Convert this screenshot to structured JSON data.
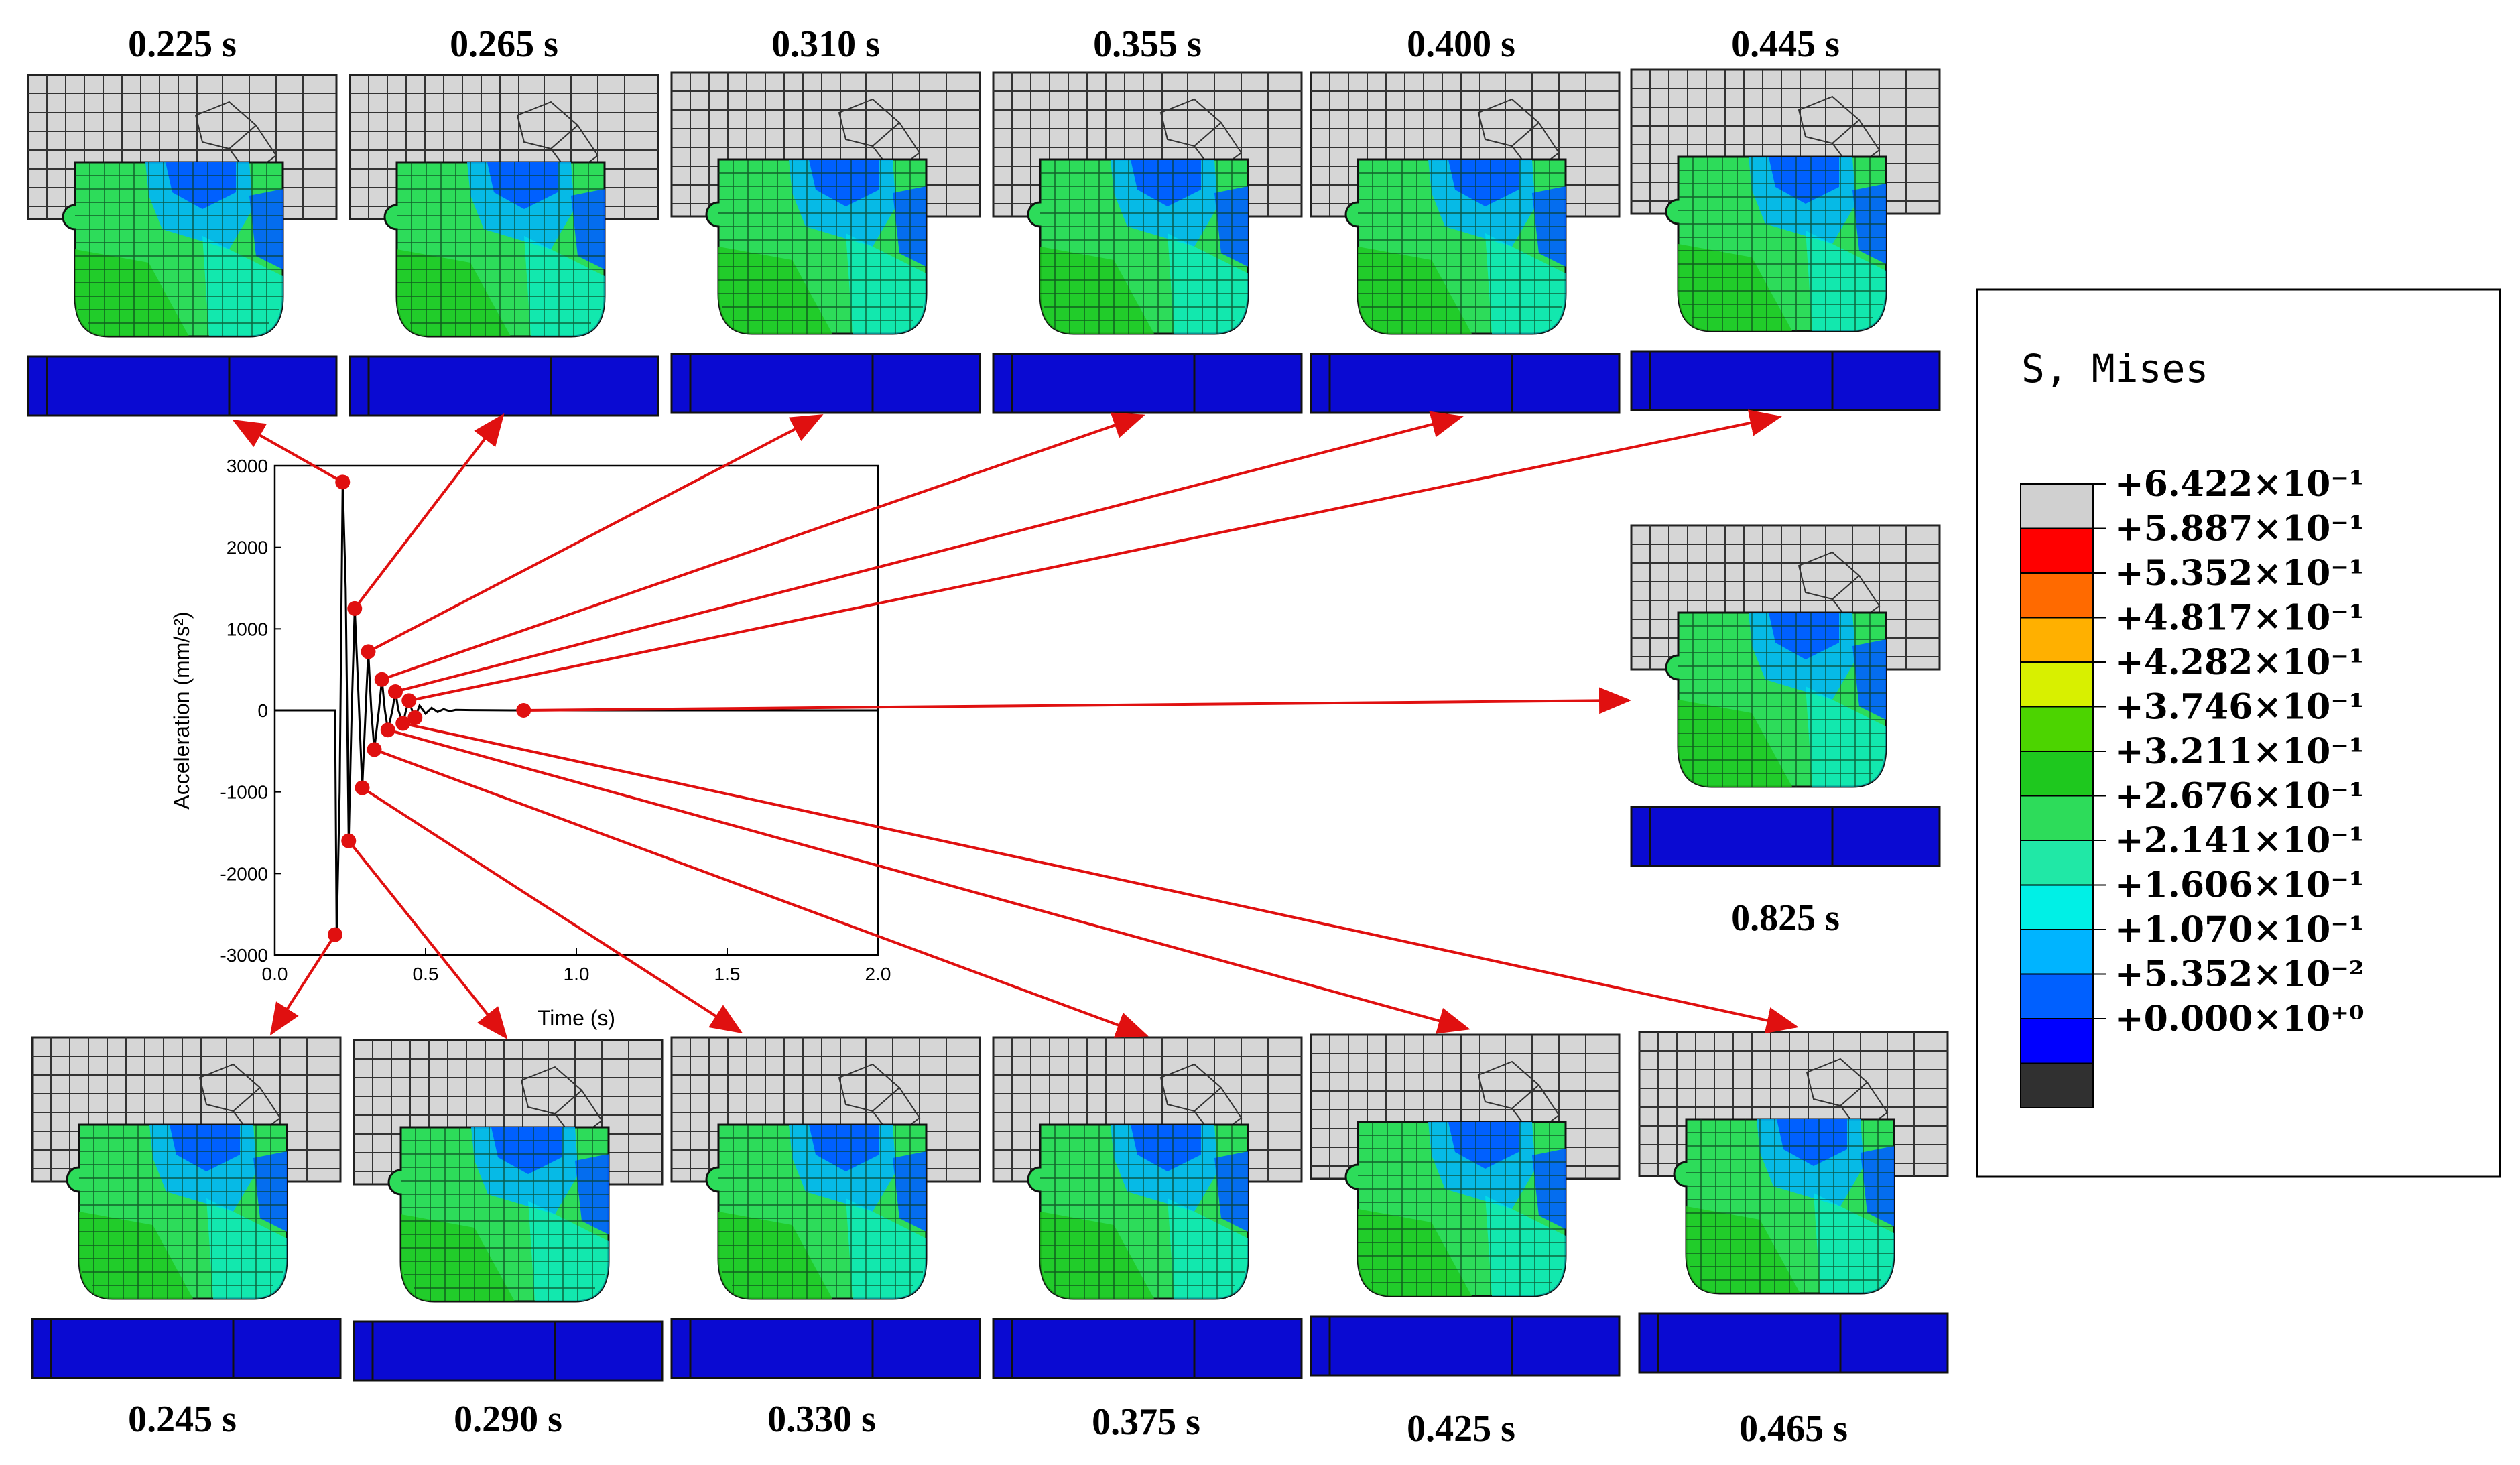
{
  "snapshots": {
    "top": [
      "0.225 s",
      "0.265 s",
      "0.310 s",
      "0.355 s",
      "0.400 s",
      "0.445 s"
    ],
    "bottom": [
      "0.245 s",
      "0.290 s",
      "0.330 s",
      "0.375 s",
      "0.425 s",
      "0.465 s"
    ],
    "side": "0.825 s"
  },
  "legend": {
    "title": "S, Mises",
    "entries": [
      {
        "label": "+6.422×10⁻¹",
        "color": "#d0d0d0"
      },
      {
        "label": "+5.887×10⁻¹",
        "color": "#ff0000"
      },
      {
        "label": "+5.352×10⁻¹",
        "color": "#ff6a00"
      },
      {
        "label": "+4.817×10⁻¹",
        "color": "#ffb000"
      },
      {
        "label": "+4.282×10⁻¹",
        "color": "#d8f000"
      },
      {
        "label": "+3.746×10⁻¹",
        "color": "#4cd400"
      },
      {
        "label": "+3.211×10⁻¹",
        "color": "#1ec81e"
      },
      {
        "label": "+2.676×10⁻¹",
        "color": "#2ddc5a"
      },
      {
        "label": "+2.141×10⁻¹",
        "color": "#20e8a6"
      },
      {
        "label": "+1.606×10⁻¹",
        "color": "#00f0e6"
      },
      {
        "label": "+1.070×10⁻¹",
        "color": "#00b4ff"
      },
      {
        "label": "+5.352×10⁻²",
        "color": "#0060ff"
      },
      {
        "label": "+0.000×10⁺⁰",
        "color": "#0000ff"
      }
    ],
    "bottom_color": "#303030"
  },
  "chart_data": {
    "type": "line",
    "xlabel": "Time (s)",
    "ylabel": "Acceleration (mm/s²)",
    "xlim": [
      0,
      2.0
    ],
    "ylim": [
      -3000,
      3000
    ],
    "xticks": [
      "0.0",
      "0.5",
      "1.0",
      "1.5",
      "2.0"
    ],
    "yticks": [
      "3000",
      "2000",
      "1000",
      "0",
      "-1000",
      "-2000",
      "-3000"
    ],
    "x": [
      0,
      0.19,
      0.2,
      0.205,
      0.215,
      0.225,
      0.235,
      0.245,
      0.255,
      0.265,
      0.275,
      0.29,
      0.3,
      0.31,
      0.32,
      0.33,
      0.345,
      0.355,
      0.365,
      0.375,
      0.39,
      0.4,
      0.41,
      0.425,
      0.435,
      0.445,
      0.455,
      0.465,
      0.48,
      0.5,
      0.52,
      0.54,
      0.56,
      0.58,
      0.6,
      0.65,
      0.7,
      0.8,
      0.825,
      1.0,
      1.5,
      2.0
    ],
    "y": [
      0,
      0,
      0,
      -2750,
      -1000,
      2800,
      1500,
      -1600,
      0,
      1250,
      400,
      -950,
      -100,
      720,
      0,
      -480,
      0,
      380,
      0,
      -240,
      0,
      230,
      0,
      -160,
      0,
      120,
      0,
      -90,
      60,
      -40,
      30,
      -20,
      15,
      -10,
      6,
      3,
      2,
      0,
      0,
      0,
      0,
      0
    ],
    "markers": [
      {
        "t": 0.225,
        "a": 2800
      },
      {
        "t": 0.245,
        "a": -1600
      },
      {
        "t": 0.265,
        "a": 1250
      },
      {
        "t": 0.29,
        "a": -950
      },
      {
        "t": 0.31,
        "a": 720
      },
      {
        "t": 0.33,
        "a": -480
      },
      {
        "t": 0.355,
        "a": 380
      },
      {
        "t": 0.375,
        "a": -240
      },
      {
        "t": 0.4,
        "a": 230
      },
      {
        "t": 0.425,
        "a": -160
      },
      {
        "t": 0.445,
        "a": 120
      },
      {
        "t": 0.465,
        "a": -90
      },
      {
        "t": 0.825,
        "a": 0
      },
      {
        "t": 0.2,
        "a": -2750
      }
    ],
    "colors": {
      "line": "#000000",
      "marker": "#e01010",
      "arrow": "#e01010"
    }
  }
}
